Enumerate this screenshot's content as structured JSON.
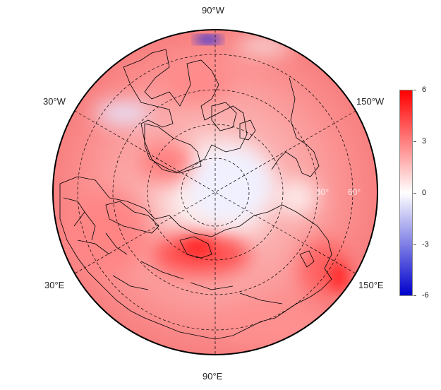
{
  "map": {
    "projection": "north-polar-stereographic",
    "field_colors": {
      "warm": "#ff1010",
      "neutral": "#ffffff",
      "cool": "#1010cc"
    },
    "lon_labels": {
      "top": "90°W",
      "bottom": "90°E",
      "upper_left": "30°W",
      "upper_right": "150°W",
      "lower_left": "30°E",
      "lower_right": "150°E"
    },
    "lat_labels": [
      "30°",
      "60°"
    ]
  },
  "colorbar": {
    "colors": [
      "#0000cc",
      "#ffffff",
      "#ff0000"
    ],
    "min": -6,
    "max": 6,
    "ticks": [
      "6",
      "3",
      "0",
      "-3",
      "-6"
    ]
  }
}
